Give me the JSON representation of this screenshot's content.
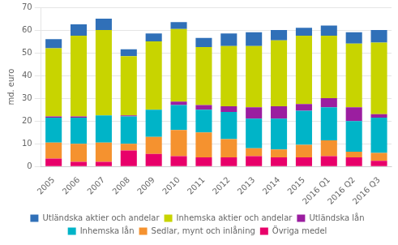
{
  "chart_data": {
    "type": "bar",
    "stacked": true,
    "categories": [
      "2005",
      "2006",
      "2007",
      "2008",
      "2009",
      "2010",
      "2011",
      "2012",
      "2013",
      "2014",
      "2015",
      "2016 Q1",
      "2016 Q2",
      "2016 Q3"
    ],
    "series": [
      {
        "name": "Övriga medel",
        "color": "#e8006a",
        "values": [
          3.5,
          2.0,
          2.0,
          7.0,
          5.5,
          4.5,
          4.0,
          4.0,
          4.5,
          4.0,
          4.0,
          4.5,
          4.0,
          2.5
        ]
      },
      {
        "name": "Sedlar, mynt och inlåning",
        "color": "#f5922f",
        "values": [
          7.0,
          8.0,
          8.5,
          3.0,
          7.5,
          11.5,
          11.0,
          8.0,
          3.5,
          3.5,
          5.5,
          7.0,
          2.5,
          3.5
        ]
      },
      {
        "name": "Inhemska lån",
        "color": "#00b4c8",
        "values": [
          11.0,
          11.5,
          12.0,
          12.0,
          12.0,
          11.0,
          10.0,
          12.0,
          13.0,
          13.5,
          15.0,
          14.5,
          13.5,
          15.5
        ]
      },
      {
        "name": "Utländska lån",
        "color": "#9b1ea0",
        "values": [
          0.5,
          0.5,
          0.0,
          0.5,
          0.0,
          1.5,
          2.0,
          2.5,
          5.0,
          5.5,
          3.0,
          4.0,
          6.0,
          1.5
        ]
      },
      {
        "name": "Inhemska aktier och andelar",
        "color": "#c8d400",
        "values": [
          30.0,
          35.5,
          37.5,
          26.0,
          30.0,
          32.0,
          25.5,
          26.5,
          27.0,
          29.0,
          30.0,
          27.5,
          28.0,
          31.5
        ]
      },
      {
        "name": "Utländska aktier och andelar",
        "color": "#3070b8",
        "values": [
          4.0,
          5.0,
          5.0,
          3.0,
          3.5,
          3.0,
          4.0,
          5.5,
          6.0,
          4.5,
          3.5,
          4.5,
          5.0,
          5.5
        ]
      }
    ],
    "ylabel": "md. euro",
    "ylim": [
      0,
      70
    ],
    "yticks": [
      0,
      10,
      20,
      30,
      40,
      50,
      60,
      70
    ],
    "grid": true,
    "legend": "bottom"
  }
}
